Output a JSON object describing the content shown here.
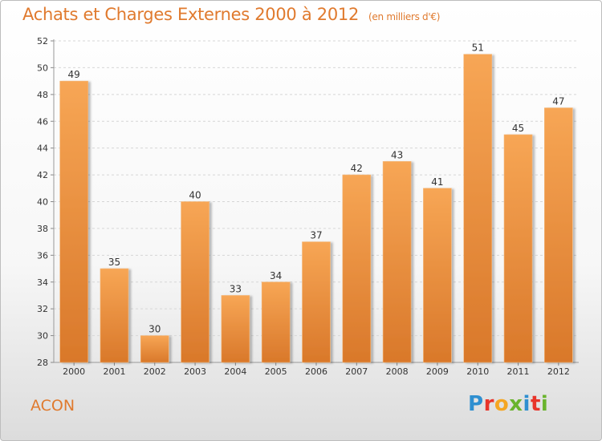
{
  "header": {
    "title": "Achats et Charges Externes 2000 à 2012",
    "unit": "(en milliers d'€)"
  },
  "footer": {
    "location": "ACON",
    "logo_text": "Proxiti",
    "logo_colors": [
      "#2f8fd0",
      "#e8342a",
      "#f5a623",
      "#6ab42d",
      "#2f8fd0",
      "#e8342a",
      "#6ab42d"
    ]
  },
  "colors": {
    "bar_top": "#f7a655",
    "bar_bottom": "#d9782a",
    "accent": "#e07a2e"
  },
  "chart_data": {
    "type": "bar",
    "title": "Achats et Charges Externes 2000 à 2012",
    "subtitle": "(en milliers d'€)",
    "categories": [
      "2000",
      "2001",
      "2002",
      "2003",
      "2004",
      "2005",
      "2006",
      "2007",
      "2008",
      "2009",
      "2010",
      "2011",
      "2012"
    ],
    "values": [
      49,
      35,
      30,
      40,
      33,
      34,
      37,
      42,
      43,
      41,
      51,
      45,
      47
    ],
    "yticks": [
      28,
      30,
      32,
      34,
      36,
      38,
      40,
      42,
      44,
      46,
      48,
      50,
      52
    ],
    "ylim": [
      28,
      52
    ],
    "grid": true,
    "data_labels": true
  }
}
